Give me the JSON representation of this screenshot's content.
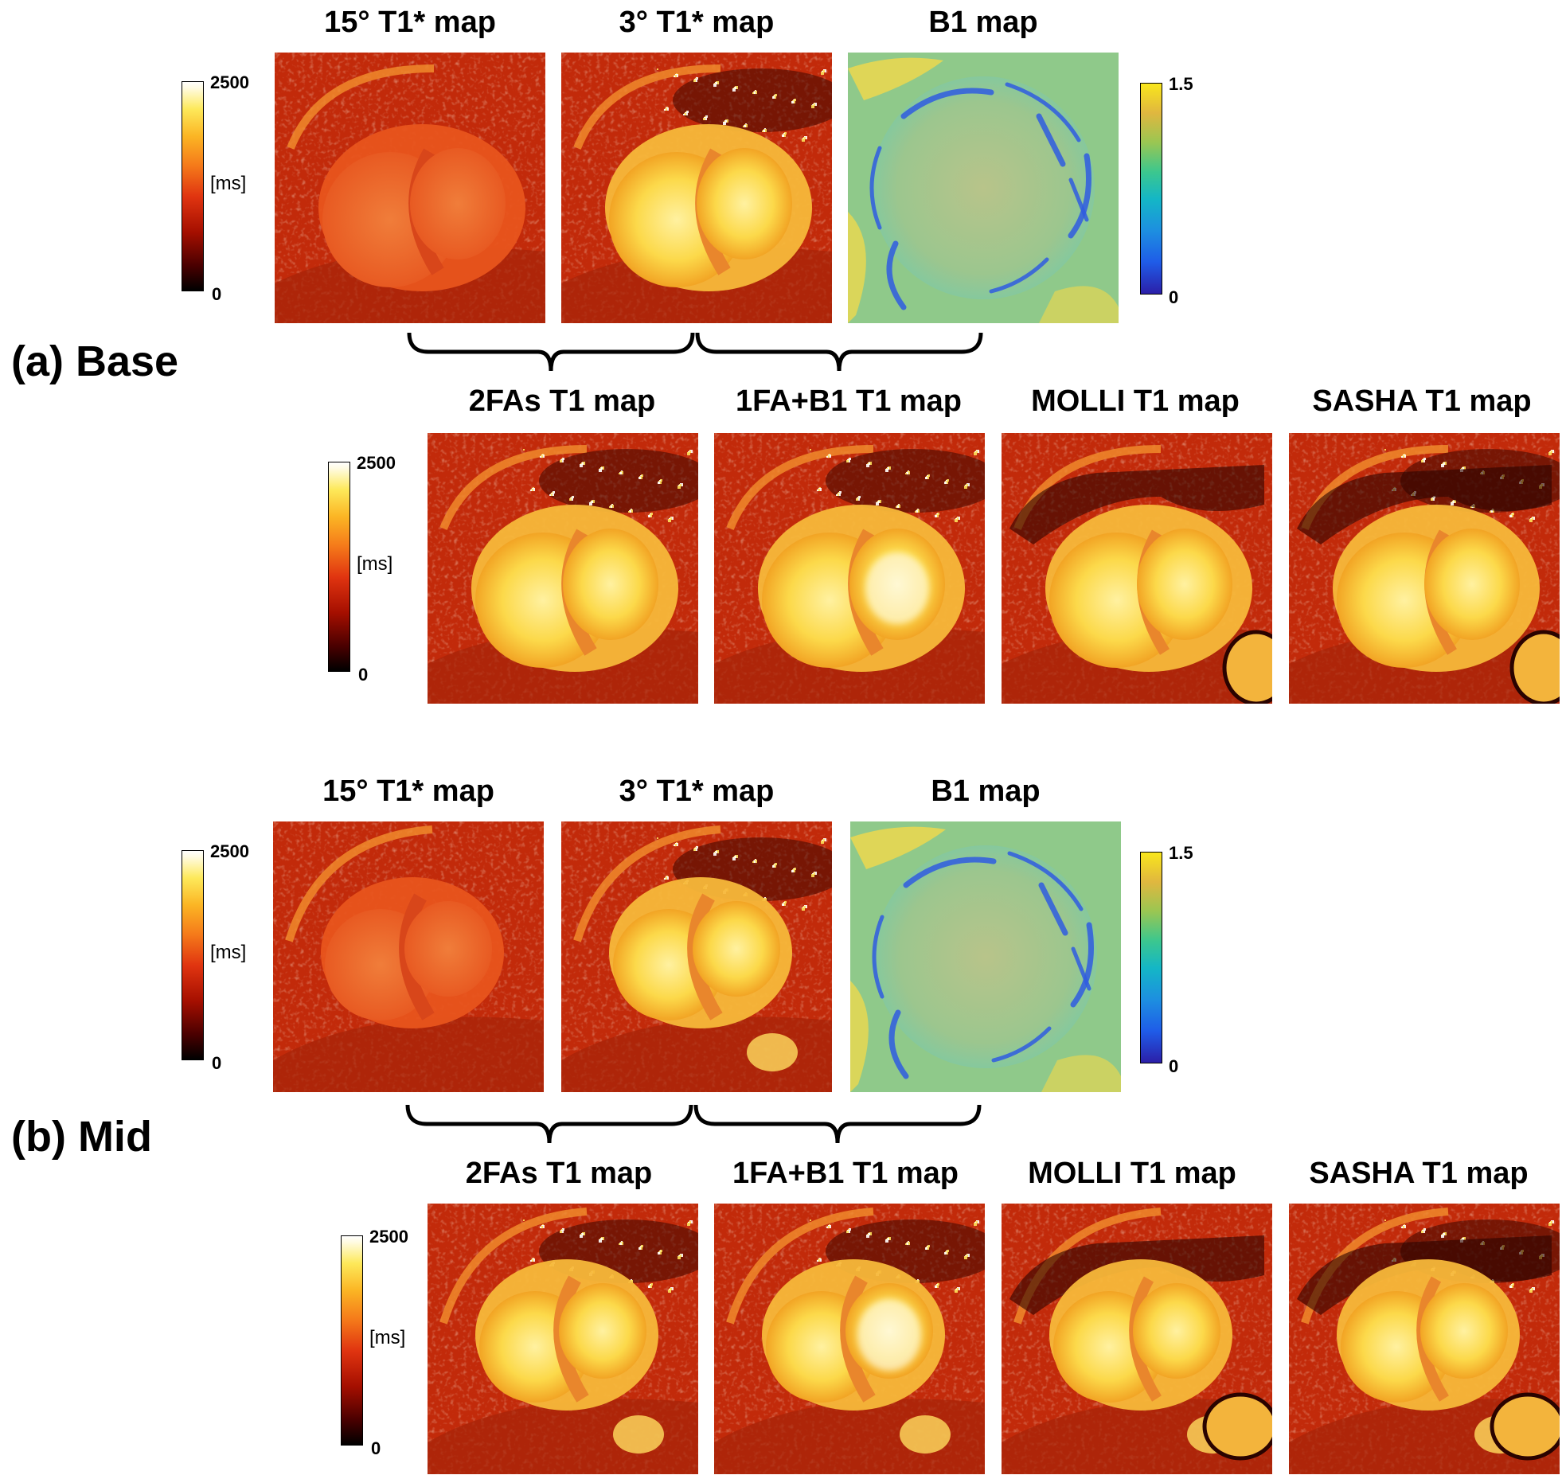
{
  "sections": [
    {
      "label": "(a) Base",
      "top_titles": [
        "15° T1* map",
        "3° T1* map",
        "B1 map"
      ],
      "bottom_titles": [
        "2FAs T1 map",
        "1FA+B1 T1 map",
        "MOLLI T1 map",
        "SASHA T1 map"
      ],
      "t1_colorbar": {
        "max": "2500",
        "unit": "[ms]",
        "min": "0"
      },
      "b1_colorbar": {
        "max": "1.5",
        "min": "0"
      },
      "bottom_colorbar": {
        "max": "2500",
        "unit": "[ms]",
        "min": "0"
      }
    },
    {
      "label": "(b) Mid",
      "top_titles": [
        "15° T1* map",
        "3° T1* map",
        "B1 map"
      ],
      "bottom_titles": [
        "2FAs T1 map",
        "1FA+B1 T1 map",
        "MOLLI T1 map",
        "SASHA T1 map"
      ],
      "t1_colorbar": {
        "max": "2500",
        "unit": "[ms]",
        "min": "0"
      },
      "b1_colorbar": {
        "max": "1.5",
        "min": "0"
      },
      "bottom_colorbar": {
        "max": "2500",
        "unit": "[ms]",
        "min": "0"
      }
    }
  ],
  "colors": {
    "heat_background": "#c22a0a",
    "heat_dark": "#5a0a02",
    "heat_bright": "#fde05a",
    "b1_background": "#8fc98a",
    "b1_low": "#2f5ce0",
    "b1_high": "#f3d94a"
  }
}
